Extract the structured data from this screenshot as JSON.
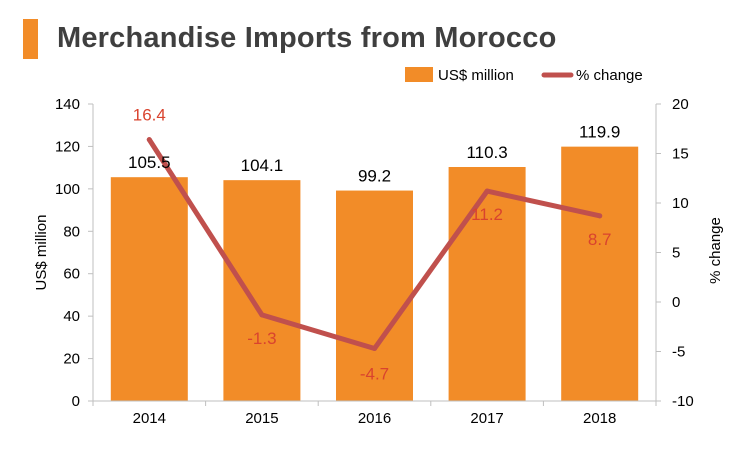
{
  "title": "Merchandise Imports from Morocco",
  "colors": {
    "bar": "#f28c28",
    "line": "#c0504d",
    "line_label": "#d9432e",
    "accent": "#f28c28"
  },
  "chart_data": {
    "type": "bar+line",
    "categories": [
      "2014",
      "2015",
      "2016",
      "2017",
      "2018"
    ],
    "series": [
      {
        "name": "US$ million",
        "type": "bar",
        "axis": "left",
        "values": [
          105.5,
          104.1,
          99.2,
          110.3,
          119.9
        ],
        "labels": [
          "105.5",
          "104.1",
          "99.2",
          "110.3",
          "119.9"
        ]
      },
      {
        "name": "% change",
        "type": "line",
        "axis": "right",
        "values": [
          16.4,
          -1.3,
          -4.7,
          11.2,
          8.7
        ],
        "labels": [
          "16.4",
          "-1.3",
          "-4.7",
          "11.2",
          "8.7"
        ]
      }
    ],
    "ylabel": "US$ million",
    "y2label": "% change",
    "ylim": [
      0,
      140
    ],
    "y2lim": [
      -10,
      20
    ],
    "yticks": [
      "0",
      "20",
      "40",
      "60",
      "80",
      "100",
      "120",
      "140"
    ],
    "y2ticks": [
      "-10",
      "-5",
      "0",
      "5",
      "10",
      "15",
      "20"
    ],
    "grid": false,
    "legend": "top-right"
  }
}
